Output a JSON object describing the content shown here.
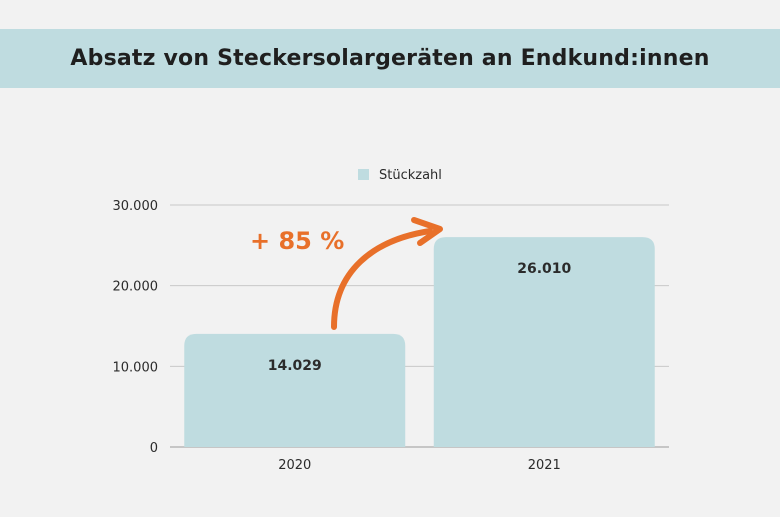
{
  "title": "Absatz von Steckersolargeräten an Endkund:innen",
  "colors": {
    "bar": "#bfdce0",
    "accent": "#e8702a",
    "grid": "#c8c8c8",
    "band": "#bfdce0"
  },
  "annotation": "+ 85 %",
  "chart_data": {
    "type": "bar",
    "categories": [
      "2020",
      "2021"
    ],
    "series": [
      {
        "name": "Stückzahl",
        "values": [
          14029,
          26010
        ]
      }
    ],
    "data_labels": [
      "14.029",
      "26.010"
    ],
    "y_ticks": [
      0,
      10000,
      20000,
      30000
    ],
    "y_tick_labels": [
      "0",
      "10.000",
      "20.000",
      "30.000"
    ],
    "ylim": [
      0,
      30000
    ],
    "grid": true,
    "legend": "top-center"
  }
}
